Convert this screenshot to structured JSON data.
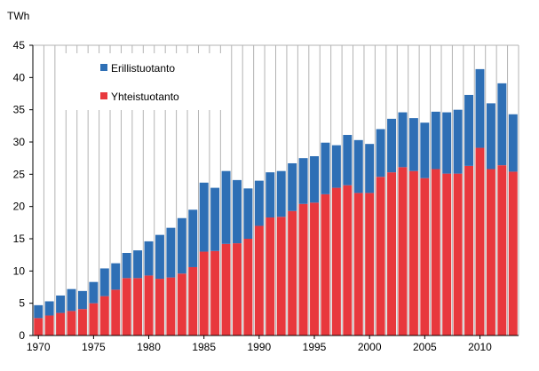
{
  "chart_data": {
    "type": "bar",
    "stacked": true,
    "ylabel": "TWh",
    "ylim": [
      0,
      45
    ],
    "ytick_step": 5,
    "categories": [
      1970,
      1971,
      1972,
      1973,
      1974,
      1975,
      1976,
      1977,
      1978,
      1979,
      1980,
      1981,
      1982,
      1983,
      1984,
      1985,
      1986,
      1987,
      1988,
      1989,
      1990,
      1991,
      1992,
      1993,
      1994,
      1995,
      1996,
      1997,
      1998,
      1999,
      2000,
      2001,
      2002,
      2003,
      2004,
      2005,
      2006,
      2007,
      2008,
      2009,
      2010,
      2011,
      2012,
      2013
    ],
    "x_tick_labels": [
      "1970",
      "1975",
      "1980",
      "1985",
      "1990",
      "1995",
      "2000",
      "2005",
      "2010"
    ],
    "y_tick_labels": [
      "0",
      "5",
      "10",
      "15",
      "20",
      "25",
      "30",
      "35",
      "40",
      "45"
    ],
    "grid": "vertical",
    "legend_position": "top-left",
    "series": [
      {
        "name": "Yhteistuotanto",
        "color": "#e8383d",
        "values": [
          2.7,
          3.1,
          3.5,
          3.8,
          4.1,
          5.0,
          6.1,
          7.1,
          8.9,
          8.9,
          9.3,
          8.8,
          9.0,
          9.6,
          10.6,
          13.0,
          13.1,
          14.2,
          14.3,
          15.0,
          17.0,
          18.3,
          18.4,
          19.3,
          20.4,
          20.6,
          21.9,
          22.9,
          23.3,
          22.1,
          22.1,
          24.6,
          25.3,
          26.1,
          25.5,
          24.4,
          25.8,
          25.1,
          25.1,
          26.3,
          29.1,
          25.8,
          26.4,
          25.4
        ]
      },
      {
        "name": "Erillistuotanto",
        "color": "#2e6fb5",
        "values": [
          2.0,
          2.2,
          2.7,
          3.4,
          2.8,
          3.3,
          4.3,
          4.1,
          3.9,
          4.3,
          5.3,
          6.8,
          7.7,
          8.6,
          8.9,
          10.7,
          9.8,
          11.3,
          9.8,
          7.8,
          7.0,
          7.0,
          7.1,
          7.4,
          7.1,
          7.2,
          8.0,
          6.6,
          7.8,
          8.2,
          7.6,
          7.4,
          8.3,
          8.5,
          8.2,
          8.6,
          8.9,
          9.5,
          9.9,
          11.0,
          12.2,
          10.2,
          12.7,
          8.9
        ]
      }
    ]
  }
}
